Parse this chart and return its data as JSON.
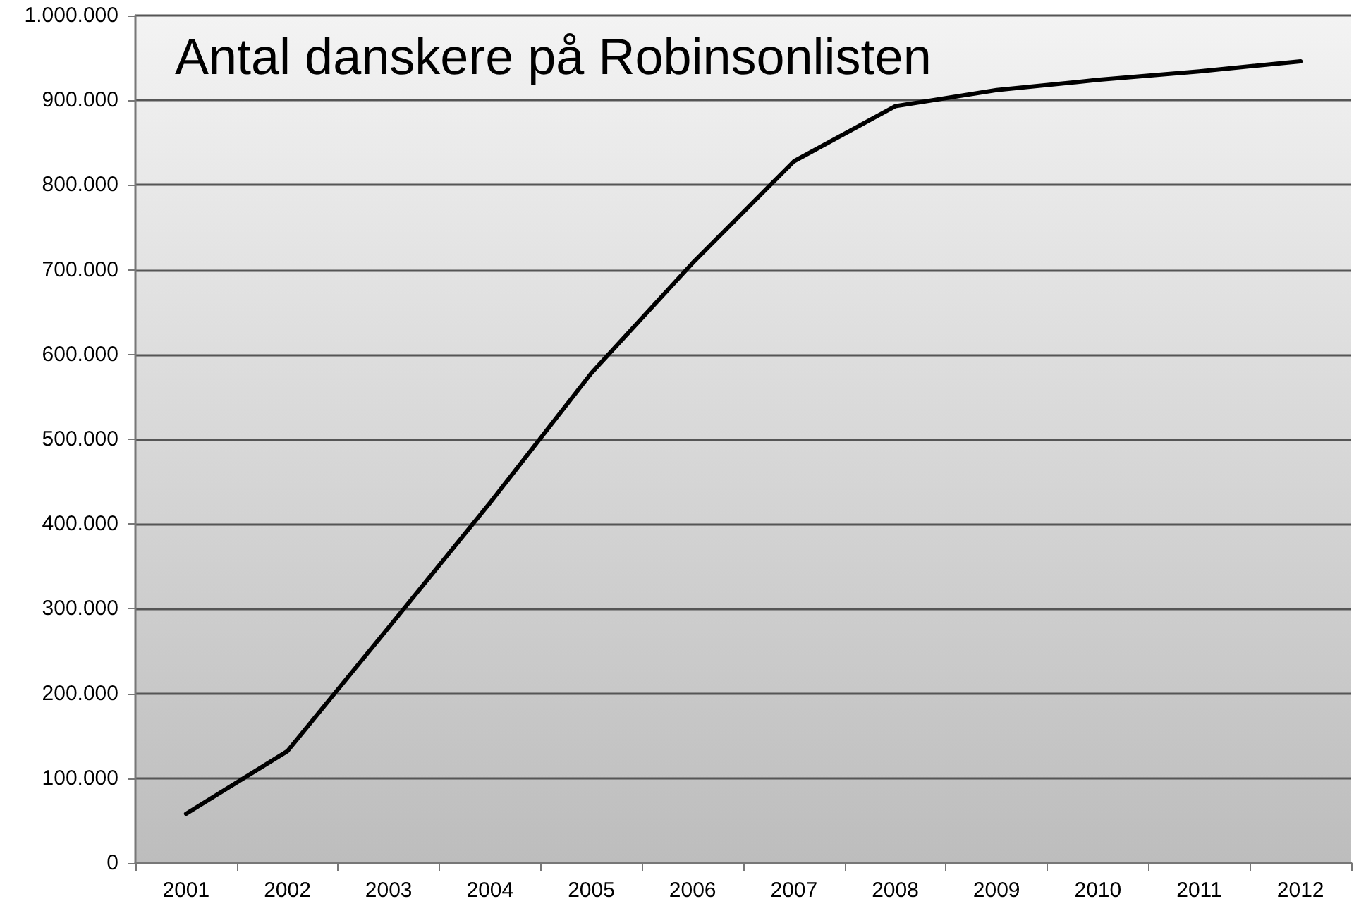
{
  "chart_data": {
    "type": "line",
    "title": "Antal danskere på Robinsonlisten",
    "categories": [
      "2001",
      "2002",
      "2003",
      "2004",
      "2005",
      "2006",
      "2007",
      "2008",
      "2009",
      "2010",
      "2011",
      "2012"
    ],
    "series": [
      {
        "color": "#000000",
        "values": [
          58000,
          132000,
          278000,
          425000,
          578000,
          708000,
          828000,
          893000,
          912000,
          924000,
          934000,
          946000
        ]
      }
    ],
    "ylim": [
      0,
      1000000
    ],
    "yticks": [
      0,
      {
        "value": 100000,
        "label": "100.000"
      },
      {
        "value": 200000,
        "label": "200.000"
      },
      {
        "value": 300000,
        "label": "300.000"
      },
      {
        "value": 400000,
        "label": "400.000"
      },
      {
        "value": 500000,
        "label": "500.000"
      },
      {
        "value": 600000,
        "label": "600.000"
      },
      {
        "value": 700000,
        "label": "700.000"
      },
      {
        "value": 800000,
        "label": "800.000"
      },
      {
        "value": 900000,
        "label": "900.000"
      },
      {
        "value": 1000000,
        "label": "1.000.000"
      }
    ],
    "grid": "y",
    "marker": "none"
  }
}
